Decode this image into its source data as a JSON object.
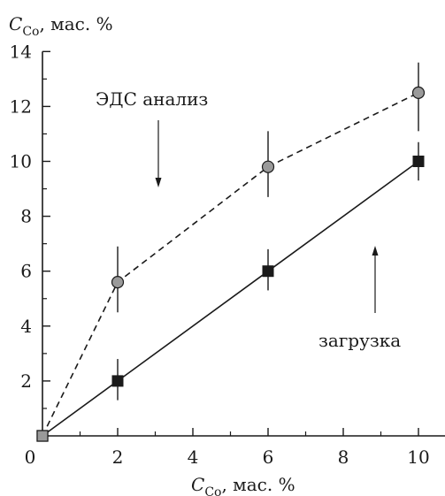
{
  "chart_data": {
    "type": "line",
    "xlabel": "C",
    "xlabel_sub": "Co",
    "xlabel_unit": ", мас. %",
    "ylabel": "C",
    "ylabel_sub": "Co",
    "ylabel_unit": ", мас. %",
    "xlim": [
      0,
      10.75
    ],
    "ylim": [
      0,
      14
    ],
    "x_ticks": [
      0,
      2,
      4,
      6,
      8,
      10
    ],
    "x_minor_ticks": [
      1,
      3,
      5,
      7,
      9
    ],
    "y_ticks": [
      2,
      4,
      6,
      8,
      10,
      12,
      14
    ],
    "y_minor_ticks": [
      1,
      3,
      5,
      7,
      9,
      11,
      13
    ],
    "series": [
      {
        "name": "ЭДС анализ",
        "style": "dashed",
        "marker": "circle",
        "color": "#9a9a9a",
        "x": [
          0,
          2,
          6,
          10
        ],
        "y": [
          0,
          5.6,
          9.8,
          12.5
        ],
        "error_low": [
          null,
          4.5,
          8.7,
          11.1
        ],
        "error_high": [
          null,
          6.9,
          11.1,
          13.6
        ]
      },
      {
        "name": "загрузка",
        "style": "solid",
        "marker": "square",
        "color": "#1a1a1a",
        "x": [
          0,
          2,
          6,
          10
        ],
        "y": [
          0,
          2.0,
          6.0,
          10.0
        ],
        "error_low": [
          null,
          1.3,
          5.3,
          9.3
        ],
        "error_high": [
          null,
          2.8,
          6.8,
          10.7
        ]
      }
    ],
    "annotations": [
      {
        "text": "ЭДС анализ",
        "arrow": "down"
      },
      {
        "text": "загрузка",
        "arrow": "up"
      }
    ]
  }
}
